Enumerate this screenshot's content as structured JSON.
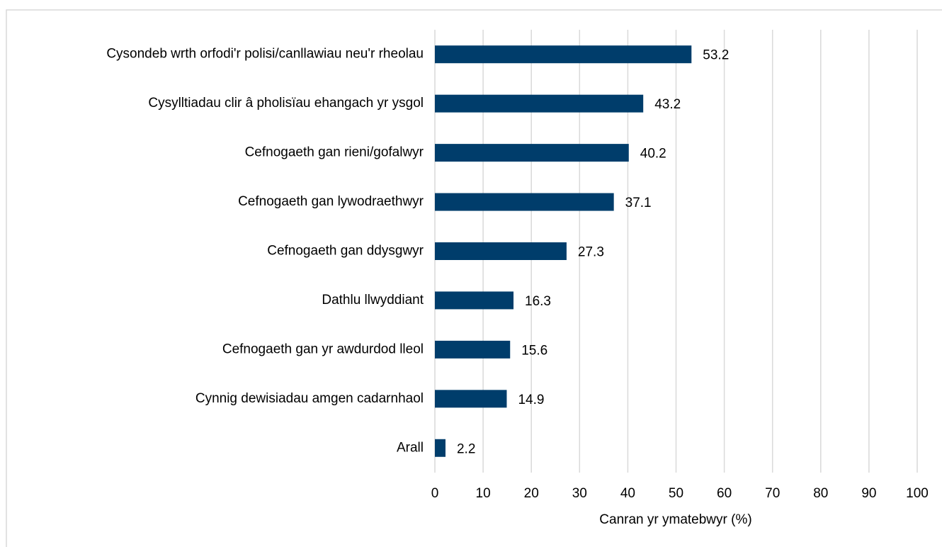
{
  "chart_data": {
    "type": "hbar",
    "x_label": "Canran yr ymatebwyr (%)",
    "categories": [
      "Cysondeb wrth orfodi'r polisi/canllawiau neu'r rheolau",
      "Cysylltiadau clir â pholisïau ehangach yr ysgol",
      "Cefnogaeth gan rieni/gofalwyr",
      "Cefnogaeth gan lywodraethwyr",
      "Cefnogaeth gan ddysgwyr",
      "Dathlu llwyddiant",
      "Cefnogaeth gan yr awdurdod lleol",
      "Cynnig dewisiadau amgen cadarnhaol",
      "Arall"
    ],
    "values": [
      53.2,
      43.2,
      40.2,
      37.1,
      27.3,
      16.3,
      15.6,
      14.9,
      2.2
    ],
    "color": "#003d6b",
    "xlim": [
      0,
      100
    ],
    "xticks": [
      0,
      10,
      20,
      30,
      40,
      50,
      60,
      70,
      80,
      90,
      100
    ],
    "grid": true
  }
}
